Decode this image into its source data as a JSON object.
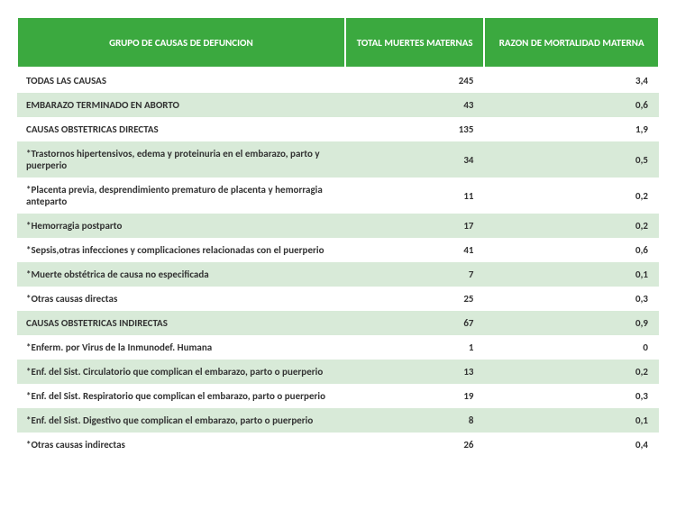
{
  "table": {
    "header_bg": "#3ba93f",
    "header_fg": "#ffffff",
    "band_bg": "#d8ead8",
    "columns": [
      {
        "key": "cause",
        "label": "GRUPO DE CAUSAS DE DEFUNCION"
      },
      {
        "key": "total",
        "label": "TOTAL MUERTES MATERNAS"
      },
      {
        "key": "ratio",
        "label": "RAZON DE MORTALIDAD MATERNA"
      }
    ],
    "rows": [
      {
        "type": "major",
        "cause": "TODAS LAS CAUSAS",
        "total": "245",
        "ratio": "3,4"
      },
      {
        "type": "major_alt",
        "cause": "EMBARAZO TERMINADO EN ABORTO",
        "total": "43",
        "ratio": "0,6"
      },
      {
        "type": "major",
        "cause": "CAUSAS OBSTETRICAS DIRECTAS",
        "total": "135",
        "ratio": "1,9"
      },
      {
        "type": "sub_odd",
        "cause": "*Trastornos hipertensivos, edema y proteinuria en el embarazo, parto y puerperio",
        "total": "34",
        "ratio": "0,5"
      },
      {
        "type": "sub_even",
        "cause": "*Placenta previa, desprendimiento prematuro de placenta y hemorragia anteparto",
        "total": "11",
        "ratio": "0,2"
      },
      {
        "type": "sub_odd",
        "cause": "*Hemorragia postparto",
        "total": "17",
        "ratio": "0,2"
      },
      {
        "type": "sub_even",
        "cause": "*Sepsis,otras infecciones y complicaciones relacionadas con el puerperio",
        "total": "41",
        "ratio": "0,6"
      },
      {
        "type": "sub_odd",
        "cause": "*Muerte obstétrica de causa no especificada",
        "total": "7",
        "ratio": "0,1"
      },
      {
        "type": "sub_even",
        "cause": "*Otras causas directas",
        "total": "25",
        "ratio": "0,3"
      },
      {
        "type": "major_alt",
        "cause": "CAUSAS OBSTETRICAS INDIRECTAS",
        "total": "67",
        "ratio": "0,9"
      },
      {
        "type": "sub_even",
        "cause": "*Enferm. por Virus de la Inmunodef. Humana",
        "total": "1",
        "ratio": "0"
      },
      {
        "type": "sub_odd",
        "cause": "*Enf. del Sist. Circulatorio que complican el embarazo, parto o puerperio",
        "total": "13",
        "ratio": "0,2"
      },
      {
        "type": "sub_even",
        "cause": "*Enf. del Sist. Respiratorio que complican el embarazo, parto o puerperio",
        "total": "19",
        "ratio": "0,3"
      },
      {
        "type": "sub_odd",
        "cause": "*Enf. del Sist. Digestivo que complican el embarazo, parto o puerperio",
        "total": "8",
        "ratio": "0,1"
      },
      {
        "type": "sub_even",
        "cause": "*Otras causas indirectas",
        "total": "26",
        "ratio": "0,4"
      }
    ]
  }
}
